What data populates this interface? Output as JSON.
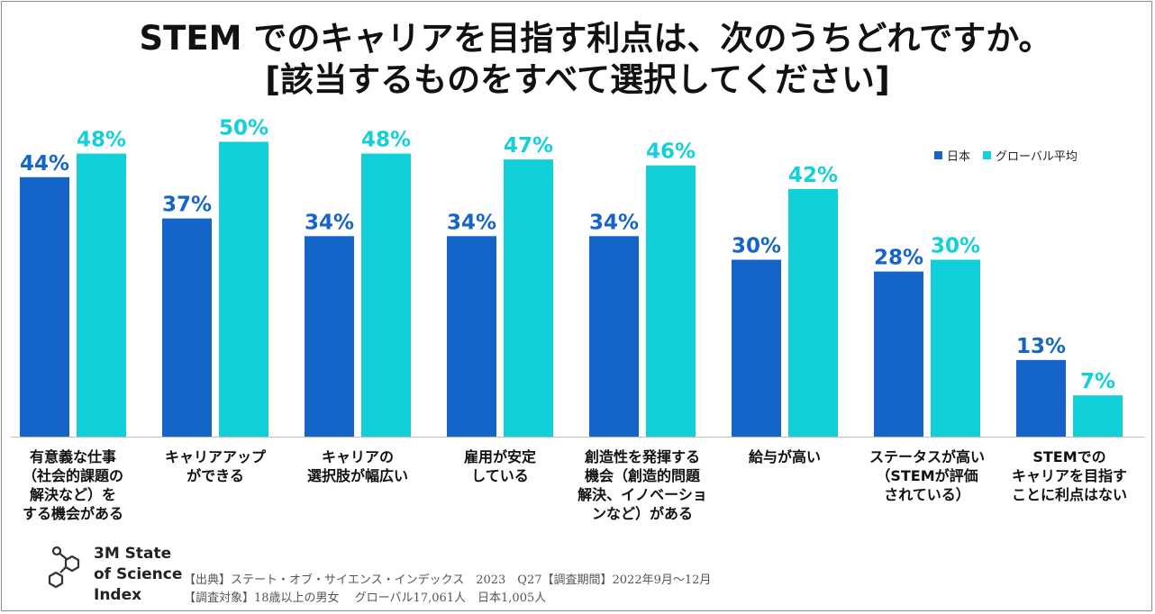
{
  "title_line1": "STEM でのキャリアを目指す利点は、次のうちどれですか。",
  "title_line2": "[該当するものをすべて選択してください]",
  "colors": {
    "japan": "#1565C8",
    "global": "#12D0DA"
  },
  "chart_data": {
    "type": "bar",
    "title": "STEM でのキャリアを目指す利点は、次のうちどれですか。[該当するものをすべて選択してください]",
    "xlabel": "",
    "ylabel": "",
    "ylim": [
      0,
      56
    ],
    "value_format": "percent",
    "legend_position": "top-right",
    "categories": [
      [
        "有意義な仕事",
        "（社会的課題の",
        "解決など）を",
        "する機会がある"
      ],
      [
        "キャリアアップ",
        "ができる"
      ],
      [
        "キャリアの",
        "選択肢が幅広い"
      ],
      [
        "雇用が安定",
        "している"
      ],
      [
        "創造性を発揮する",
        "機会（創造的問題",
        "解決、イノベーショ",
        "ンなど）がある"
      ],
      [
        "給与が高い"
      ],
      [
        "ステータスが高い",
        "（STEMが評価",
        "されている）"
      ],
      [
        "STEMでの",
        "キャリアを目指す",
        "ことに利点はない"
      ]
    ],
    "series": [
      {
        "name": "日本",
        "values": [
          44,
          37,
          34,
          34,
          34,
          30,
          28,
          13
        ]
      },
      {
        "name": "グローバル平均",
        "values": [
          48,
          50,
          48,
          47,
          46,
          42,
          30,
          7
        ]
      }
    ]
  },
  "brand": {
    "line1": "3M State",
    "line2": "of Science",
    "line3": "Index"
  },
  "source": {
    "line1": "【出典】ステート・オブ・サイエンス・インデックス　2023　Q27【調査期間】2022年9月～12月",
    "line2": "【調査対象】18歳以上の男女　 グローバル17,061人　日本1,005人"
  }
}
